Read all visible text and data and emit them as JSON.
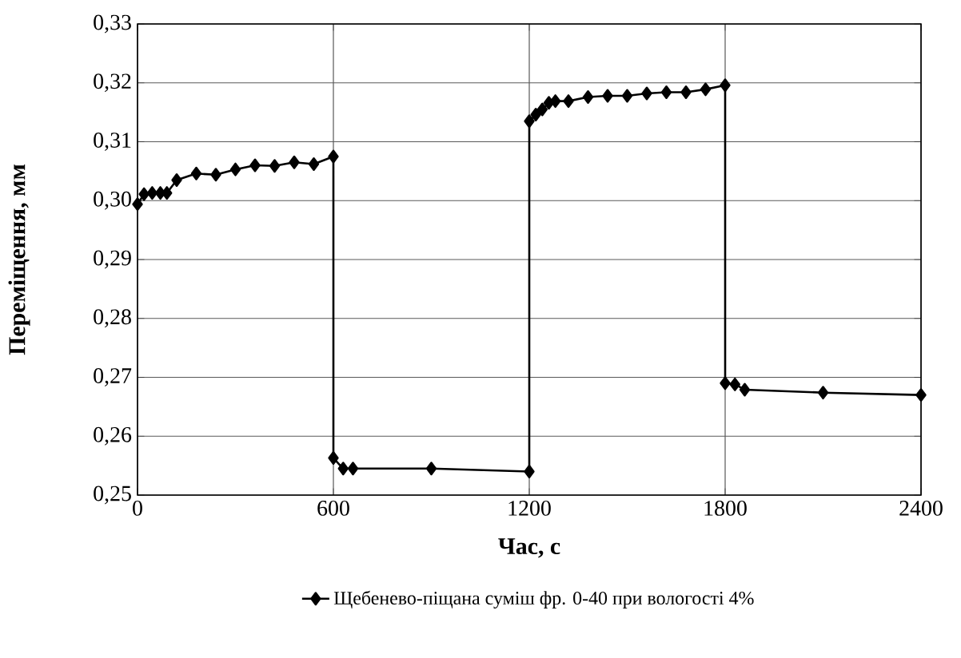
{
  "chart_data": {
    "type": "line",
    "xlabel": "Час, с",
    "ylabel": "Переміщення, мм",
    "x": [
      0,
      20,
      45,
      70,
      90,
      120,
      180,
      240,
      300,
      360,
      420,
      480,
      540,
      600,
      600,
      630,
      660,
      900,
      1200,
      1200,
      1220,
      1240,
      1260,
      1280,
      1320,
      1380,
      1440,
      1500,
      1560,
      1620,
      1680,
      1740,
      1800,
      1800,
      1830,
      1860,
      2100,
      2400
    ],
    "series": [
      {
        "name": "Щебенево-піщана суміш фр. 0-40 при вологості 4%",
        "color": "#000000",
        "values": [
          0.2994,
          0.3011,
          0.3013,
          0.3013,
          0.3013,
          0.3035,
          0.3046,
          0.3044,
          0.3053,
          0.306,
          0.3059,
          0.3065,
          0.3062,
          0.3075,
          0.2563,
          0.2545,
          0.2545,
          0.2545,
          0.254,
          0.3135,
          0.3146,
          0.3155,
          0.3166,
          0.3169,
          0.3169,
          0.3176,
          0.3178,
          0.3178,
          0.3182,
          0.3184,
          0.3184,
          0.3189,
          0.3196,
          0.269,
          0.2688,
          0.2679,
          0.2674,
          0.267
        ]
      }
    ],
    "xlim": [
      0,
      2400
    ],
    "xticks": [
      0,
      600,
      1200,
      1800,
      2400
    ],
    "ylim": [
      0.25,
      0.33
    ],
    "yticks": [
      {
        "value": 0.25,
        "label": "0,25"
      },
      {
        "value": 0.26,
        "label": "0,26"
      },
      {
        "value": 0.27,
        "label": "0,27"
      },
      {
        "value": 0.28,
        "label": "0,28"
      },
      {
        "value": 0.29,
        "label": "0,29"
      },
      {
        "value": 0.3,
        "label": "0,30"
      },
      {
        "value": 0.31,
        "label": "0,31"
      },
      {
        "value": 0.32,
        "label": "0,32"
      },
      {
        "value": 0.33,
        "label": "0,33"
      }
    ],
    "grid": true,
    "legend": "bottom",
    "marker": "diamond",
    "line_style": "solid"
  }
}
